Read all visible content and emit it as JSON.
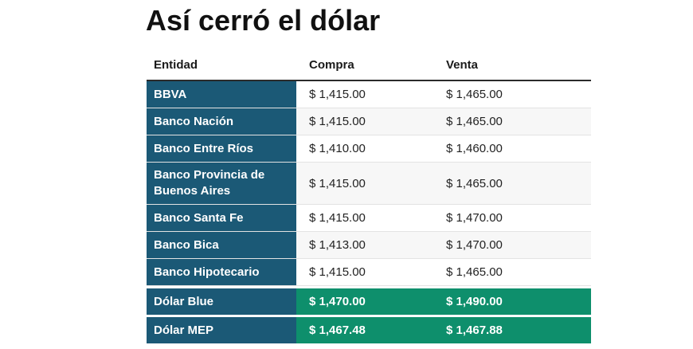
{
  "title": "Así cerró el dólar",
  "table": {
    "headers": {
      "entity": "Entidad",
      "buy": "Compra",
      "sell": "Venta"
    },
    "rows": [
      {
        "entity": "BBVA",
        "buy": "$ 1,415.00",
        "sell": "$ 1,465.00"
      },
      {
        "entity": "Banco Nación",
        "buy": "$ 1,415.00",
        "sell": "$ 1,465.00"
      },
      {
        "entity": "Banco Entre Ríos",
        "buy": "$ 1,410.00",
        "sell": "$ 1,460.00"
      },
      {
        "entity": "Banco Provincia de Buenos Aires",
        "buy": "$ 1,415.00",
        "sell": "$ 1,465.00"
      },
      {
        "entity": "Banco Santa Fe",
        "buy": "$ 1,415.00",
        "sell": "$ 1,470.00"
      },
      {
        "entity": "Banco Bica",
        "buy": "$ 1,413.00",
        "sell": "$ 1,470.00"
      },
      {
        "entity": "Banco Hipotecario",
        "buy": "$ 1,415.00",
        "sell": "$ 1,465.00"
      }
    ],
    "special_rows": [
      {
        "entity": "Dólar Blue",
        "buy": "$ 1,470.00",
        "sell": "$ 1,490.00"
      },
      {
        "entity": "Dólar MEP",
        "buy": "$ 1,467.48",
        "sell": "$ 1,467.88"
      }
    ]
  },
  "colors": {
    "entity_column": "#1b5976",
    "highlight": "#0e8f6c",
    "alt_row": "#f7f7f7"
  }
}
